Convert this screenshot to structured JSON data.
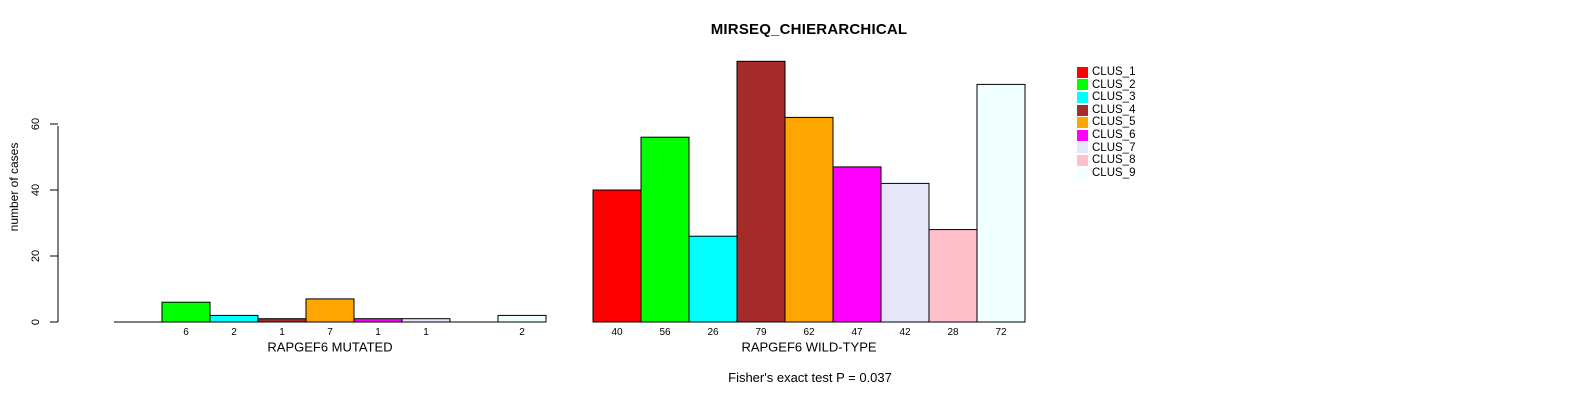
{
  "figure": {
    "title": "MIRSEQ_CHIERARCHICAL",
    "y_axis_label": "number of cases",
    "footnote": "Fisher's exact test P = 0.037"
  },
  "chart_data": {
    "type": "bar",
    "title": "MIRSEQ_CHIERARCHICAL",
    "ylabel": "number of cases",
    "xlabel": "",
    "ylim": [
      0,
      60
    ],
    "yticks": [
      0,
      20,
      40,
      60
    ],
    "grid": false,
    "bar_borders": "black",
    "legend_position": "right",
    "legend": [
      {
        "label": "CLUS_1",
        "color": "#FF0000"
      },
      {
        "label": "CLUS_2",
        "color": "#00FF00"
      },
      {
        "label": "CLUS_3",
        "color": "#00FFFF"
      },
      {
        "label": "CLUS_4",
        "color": "#A52A2A"
      },
      {
        "label": "CLUS_5",
        "color": "#FFA500"
      },
      {
        "label": "CLUS_6",
        "color": "#FF00FF"
      },
      {
        "label": "CLUS_7",
        "color": "#E6E6FA"
      },
      {
        "label": "CLUS_8",
        "color": "#FFC0CB"
      },
      {
        "label": "CLUS_9",
        "color": "#F0FFFF"
      }
    ],
    "groups": [
      {
        "label": "RAPGEF6 MUTATED",
        "values": [
          0,
          6,
          2,
          1,
          7,
          1,
          1,
          0,
          2
        ]
      },
      {
        "label": "RAPGEF6 WILD-TYPE",
        "values": [
          40,
          56,
          26,
          79,
          62,
          47,
          42,
          28,
          72
        ]
      }
    ],
    "value_labels_shown_under_bars": true,
    "annotation": "Fisher's exact test P = 0.037"
  }
}
